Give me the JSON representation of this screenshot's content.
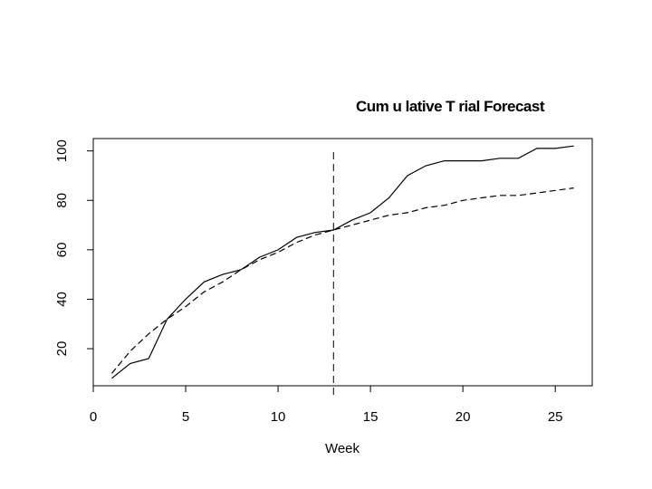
{
  "chart_data": {
    "type": "line",
    "title": "Cum u lative T rial Forecast",
    "xlabel": "Week",
    "ylabel": "",
    "xlim": [
      0,
      27
    ],
    "ylim": [
      5,
      105
    ],
    "xticks": [
      0,
      5,
      10,
      15,
      20,
      25
    ],
    "yticks": [
      20,
      40,
      60,
      80,
      100
    ],
    "grid": false,
    "legend": "none",
    "vline_x": 13,
    "series": [
      {
        "style": "solid",
        "color": "#000000",
        "x": [
          1,
          2,
          3,
          4,
          5,
          6,
          7,
          8,
          9,
          10,
          11,
          12,
          13,
          14,
          15,
          16,
          17,
          18,
          19,
          20,
          21,
          22,
          23,
          24,
          25,
          26
        ],
        "y": [
          8,
          14,
          16,
          32,
          40,
          47,
          50,
          52,
          57,
          60,
          65,
          67,
          68,
          72,
          75,
          81,
          90,
          94,
          96,
          96,
          96,
          97,
          97,
          101,
          101,
          102
        ]
      },
      {
        "style": "dashed",
        "color": "#000000",
        "x": [
          1,
          2,
          3,
          4,
          5,
          6,
          7,
          8,
          9,
          10,
          11,
          12,
          13,
          14,
          15,
          16,
          17,
          18,
          19,
          20,
          21,
          22,
          23,
          24,
          25,
          26
        ],
        "y": [
          10,
          19,
          26,
          32,
          37,
          43,
          47,
          52,
          56,
          59,
          63,
          66,
          68,
          70,
          72,
          74,
          75,
          77,
          78,
          80,
          81,
          82,
          82,
          83,
          84,
          85
        ]
      }
    ]
  }
}
